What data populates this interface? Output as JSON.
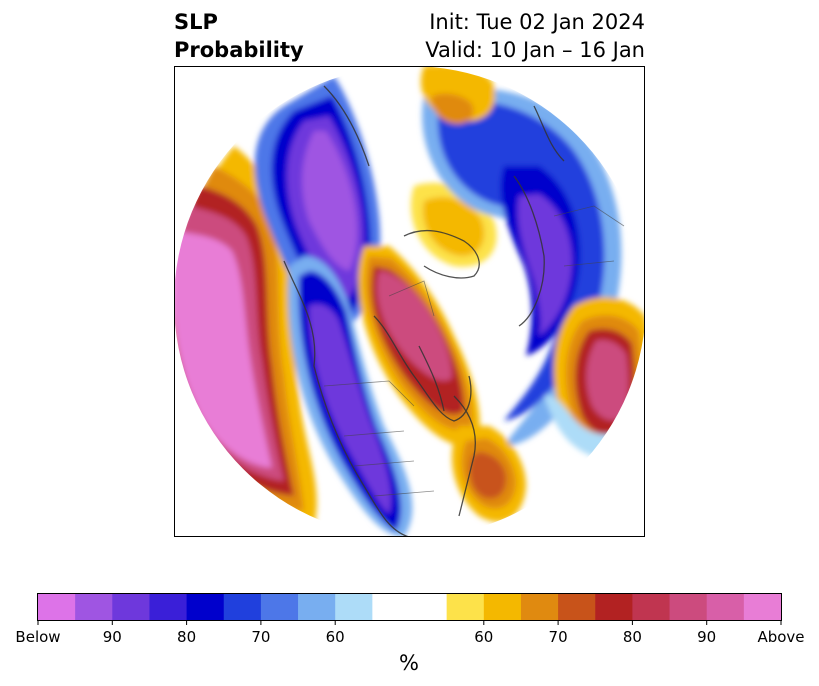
{
  "title": {
    "line1": "SLP",
    "line2": "Probability",
    "init": "Init: Tue 02 Jan 2024",
    "valid": "Valid: 10 Jan – 16 Jan"
  },
  "colorbar": {
    "label": "%",
    "ticks": [
      "Below",
      "90",
      "80",
      "70",
      "60",
      "60",
      "70",
      "80",
      "90",
      "Above"
    ],
    "colors": [
      "#dd73e8",
      "#9f55e2",
      "#6e38dc",
      "#3a1fd8",
      "#0000cc",
      "#2040dd",
      "#4d77e8",
      "#78aef0",
      "#addcf8",
      "#ffffff",
      "#ffffff",
      "#fde24a",
      "#f4b800",
      "#e08a10",
      "#c8531a",
      "#b22222",
      "#c03550",
      "#cc4b7e",
      "#d85fa8",
      "#e87dd6"
    ]
  },
  "map": {
    "projection": "north-polar-stereographic",
    "features": [
      "coastlines",
      "country-borders",
      "state-borders"
    ]
  }
}
